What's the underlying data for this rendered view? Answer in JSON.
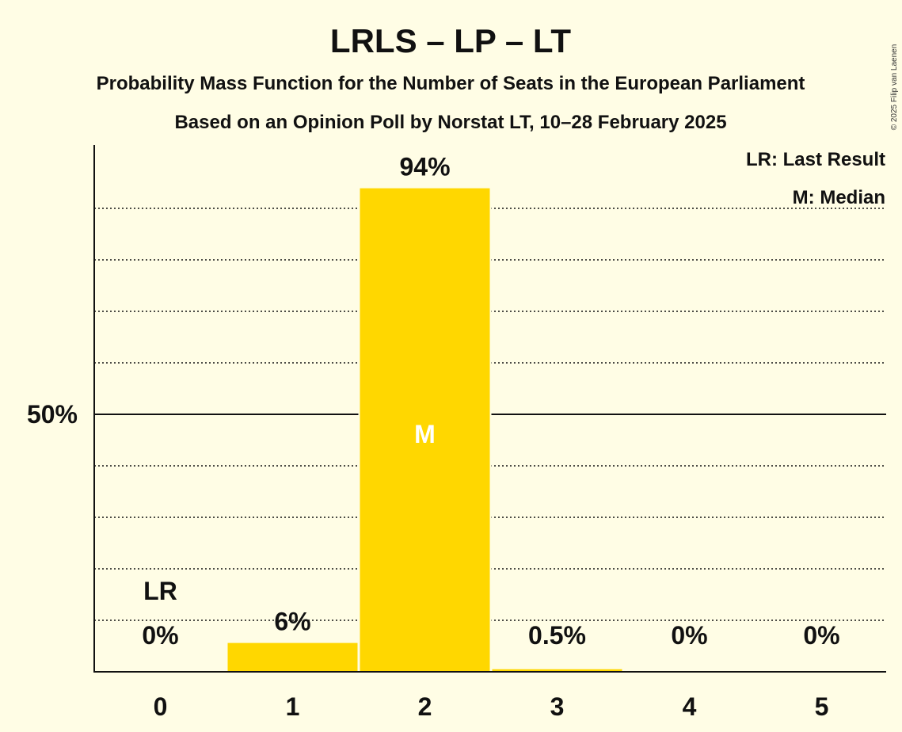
{
  "chart_data": {
    "type": "bar",
    "title": "LRLS – LP – LT",
    "subtitle": "Probability Mass Function for the Number of Seats in the European Parliament",
    "subtitle2": "Based on an Opinion Poll by Norstat LT, 10–28 February 2025",
    "categories": [
      "0",
      "1",
      "2",
      "3",
      "4",
      "5"
    ],
    "values": [
      0,
      5.6,
      93.9,
      0.5,
      0,
      0
    ],
    "value_labels": [
      "0%",
      "6%",
      "94%",
      "0.5%",
      "0%",
      "0%"
    ],
    "ylim": [
      0,
      100
    ],
    "y_tick_label": "50%",
    "y_tick_value": 50,
    "dotted_grid_values": [
      10,
      20,
      30,
      40,
      60,
      70,
      80,
      90
    ],
    "bar_color": "#FFD700",
    "last_result_index": 0,
    "last_result_marker": "LR",
    "median_index": 2,
    "median_marker": "M",
    "legend": [
      "LR: Last Result",
      "M: Median"
    ],
    "legend_position": "top-right",
    "copyright": "© 2025 Filip van Laenen"
  }
}
